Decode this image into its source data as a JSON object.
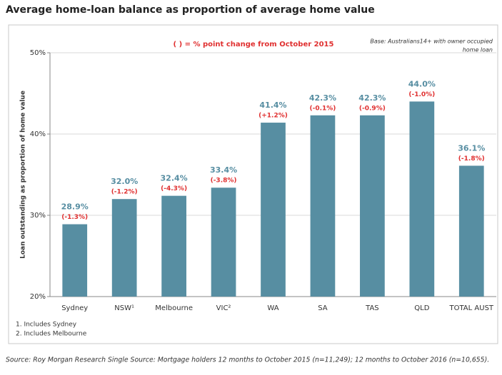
{
  "chart_data": {
    "type": "bar",
    "title": "Average home-loan balance as proportion of average home value",
    "annotation": "( ) = % point change from October 2015",
    "base_note": [
      "Base: Australians14+ with owner occupied",
      "home loan"
    ],
    "y_label": "Loan outstanding as proportion of home value",
    "categories": [
      "Sydney",
      "NSW¹",
      "Melbourne",
      "VIC²",
      "WA",
      "SA",
      "TAS",
      "QLD",
      "TOTAL AUST"
    ],
    "values": [
      28.9,
      32.0,
      32.4,
      33.4,
      41.4,
      42.3,
      42.3,
      44.0,
      36.1
    ],
    "value_labels": [
      "28.9%",
      "32.0%",
      "32.4%",
      "33.4%",
      "41.4%",
      "42.3%",
      "42.3%",
      "44.0%",
      "36.1%"
    ],
    "change_labels": [
      "(-1.3%)",
      "(-1.2%)",
      "(-4.3%)",
      "(-3.8%)",
      "(+1.2%)",
      "(-0.1%)",
      "(-0.9%)",
      "(-1.0%)",
      "(-1.8%)"
    ],
    "color": "#578ea2",
    "ylim": [
      20,
      50
    ],
    "yticks": [
      {
        "value": 20,
        "label": "20%"
      },
      {
        "value": 30,
        "label": "30%"
      },
      {
        "value": 40,
        "label": "40%"
      },
      {
        "value": 50,
        "label": "50%"
      }
    ],
    "grid": true,
    "footnotes": [
      "1. Includes Sydney",
      "2. Includes Melbourne"
    ],
    "source": "Source: Roy Morgan Research Single Source: Mortgage holders 12 months to October 2015 (n=11,249); 12 months to October 2016 (n=10,655)."
  }
}
